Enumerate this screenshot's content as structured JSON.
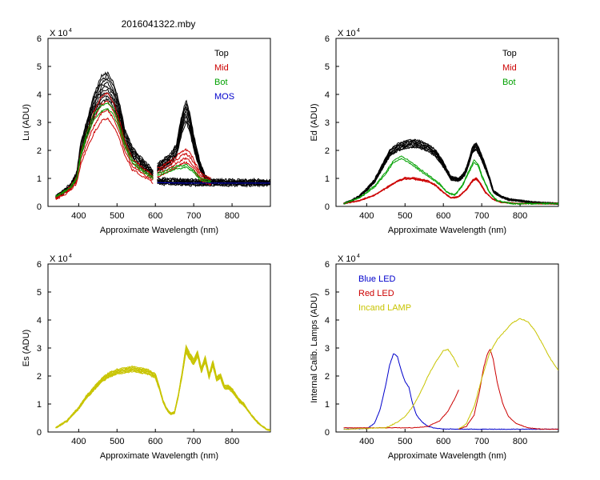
{
  "figure": {
    "title": "2016041322.mby"
  },
  "chart_data": [
    {
      "type": "line",
      "id": "lu",
      "ylabel": "Lu (ADU)",
      "xlabel": "Approximate Wavelength (nm)",
      "y_multiplier": "X 10",
      "y_exponent": "4",
      "xlim": [
        320,
        900
      ],
      "ylim": [
        0,
        6
      ],
      "xticks": [
        400,
        500,
        600,
        700,
        800
      ],
      "yticks": [
        0,
        1,
        2,
        3,
        4,
        5,
        6
      ],
      "legend": [
        "Top",
        "Mid",
        "Bot",
        "MOS"
      ],
      "series": [
        {
          "name": "Top",
          "color": "#000000",
          "copies": 9,
          "spread": 0.22,
          "jitter": 0.1,
          "segments": [
            {
              "x": [
                340,
                360,
                380,
                395,
                405,
                420,
                440,
                460,
                475,
                490,
                505,
                520,
                540,
                560,
                580,
                595
              ],
              "y": [
                0.35,
                0.5,
                0.75,
                1.1,
                2.0,
                2.7,
                3.6,
                4.2,
                4.3,
                4.0,
                3.4,
                2.5,
                1.9,
                1.6,
                1.35,
                1.15
              ]
            },
            {
              "x": [
                605,
                620,
                640,
                655,
                670,
                680,
                690,
                700,
                715,
                730,
                745
              ],
              "y": [
                1.35,
                1.5,
                1.7,
                2.0,
                3.0,
                3.4,
                3.0,
                2.3,
                1.5,
                1.0,
                0.85
              ]
            },
            {
              "x": [
                605,
                640,
                680,
                720,
                760,
                800,
                850,
                900
              ],
              "y": [
                0.9,
                0.88,
                0.86,
                0.85,
                0.85,
                0.85,
                0.85,
                0.85
              ]
            }
          ]
        },
        {
          "name": "Mid",
          "color": "#cc0000",
          "copies": 4,
          "spread": 0.25,
          "jitter": 0.08,
          "segments": [
            {
              "x": [
                340,
                360,
                380,
                395,
                405,
                420,
                440,
                460,
                475,
                490,
                505,
                520,
                540,
                560,
                580,
                595
              ],
              "y": [
                0.3,
                0.45,
                0.65,
                0.95,
                1.7,
                2.3,
                3.0,
                3.5,
                3.6,
                3.3,
                2.8,
                2.1,
                1.5,
                1.3,
                1.1,
                0.95
              ]
            },
            {
              "x": [
                605,
                620,
                640,
                655,
                670,
                680,
                690,
                700,
                715,
                730,
                745
              ],
              "y": [
                1.2,
                1.3,
                1.45,
                1.6,
                1.75,
                1.8,
                1.7,
                1.5,
                1.1,
                0.95,
                0.9
              ]
            }
          ]
        },
        {
          "name": "Bot",
          "color": "#00a000",
          "copies": 2,
          "spread": 0.06,
          "jitter": 0.05,
          "segments": [
            {
              "x": [
                340,
                360,
                380,
                395,
                405,
                420,
                440,
                460,
                475,
                490,
                505,
                520,
                540,
                560,
                580,
                595
              ],
              "y": [
                0.35,
                0.5,
                0.7,
                1.0,
                1.8,
                2.5,
                3.2,
                3.5,
                3.6,
                3.4,
                2.9,
                2.2,
                1.6,
                1.35,
                1.15,
                1.0
              ]
            },
            {
              "x": [
                605,
                620,
                640,
                655,
                670,
                680,
                690,
                700,
                715,
                730,
                745
              ],
              "y": [
                1.15,
                1.2,
                1.3,
                1.4,
                1.4,
                1.45,
                1.35,
                1.25,
                1.0,
                0.92,
                0.88
              ]
            }
          ]
        },
        {
          "name": "MOS",
          "color": "#0000cc",
          "copies": 1,
          "spread": 0,
          "jitter": 0,
          "segments": [
            {
              "x": [
                605,
                640,
                680,
                720,
                760,
                800,
                850,
                900
              ],
              "y": [
                0.85,
                0.84,
                0.83,
                0.83,
                0.83,
                0.83,
                0.83,
                0.83
              ]
            }
          ]
        }
      ]
    },
    {
      "type": "line",
      "id": "ed",
      "ylabel": "Ed  (ADU)",
      "xlabel": "Approximate Wavelength (nm)",
      "y_multiplier": "X 10",
      "y_exponent": "4",
      "xlim": [
        320,
        900
      ],
      "ylim": [
        0,
        6
      ],
      "xticks": [
        400,
        500,
        600,
        700,
        800
      ],
      "yticks": [
        0,
        1,
        2,
        3,
        4,
        5,
        6
      ],
      "legend": [
        "Top",
        "Mid",
        "Bot"
      ],
      "series": [
        {
          "name": "Top",
          "color": "#000000",
          "copies": 9,
          "spread": 0.12,
          "jitter": 0.06,
          "segments": [
            {
              "x": [
                340,
                360,
                380,
                400,
                420,
                440,
                460,
                480,
                500,
                520,
                540,
                560,
                580,
                600,
                620,
                640,
                655,
                665,
                675,
                685,
                695,
                710,
                720,
                730,
                750,
                770,
                800,
                830,
                860,
                900
              ],
              "y": [
                0.1,
                0.2,
                0.35,
                0.6,
                0.9,
                1.4,
                1.9,
                2.1,
                2.2,
                2.25,
                2.2,
                2.1,
                1.9,
                1.5,
                1.0,
                0.95,
                1.15,
                1.5,
                2.0,
                2.15,
                1.9,
                1.4,
                1.0,
                0.55,
                0.35,
                0.25,
                0.2,
                0.15,
                0.12,
                0.1
              ]
            }
          ]
        },
        {
          "name": "Mid",
          "color": "#cc0000",
          "copies": 4,
          "spread": 0.05,
          "jitter": 0.04,
          "segments": [
            {
              "x": [
                340,
                380,
                420,
                450,
                480,
                500,
                520,
                540,
                560,
                580,
                600,
                620,
                640,
                660,
                675,
                685,
                695,
                710,
                730,
                750,
                800,
                900
              ],
              "y": [
                0.1,
                0.2,
                0.4,
                0.65,
                0.9,
                1.0,
                1.0,
                0.95,
                0.9,
                0.75,
                0.5,
                0.3,
                0.35,
                0.6,
                0.9,
                1.0,
                0.85,
                0.5,
                0.25,
                0.15,
                0.1,
                0.1
              ]
            }
          ]
        },
        {
          "name": "Bot",
          "color": "#00a000",
          "copies": 2,
          "spread": 0.05,
          "jitter": 0.05,
          "segments": [
            {
              "x": [
                340,
                380,
                420,
                450,
                470,
                490,
                510,
                530,
                550,
                570,
                590,
                610,
                630,
                650,
                665,
                680,
                690,
                700,
                720,
                740,
                780,
                900
              ],
              "y": [
                0.1,
                0.3,
                0.7,
                1.2,
                1.6,
                1.75,
                1.6,
                1.4,
                1.2,
                1.0,
                0.8,
                0.5,
                0.4,
                0.75,
                1.2,
                1.6,
                1.5,
                1.1,
                0.5,
                0.2,
                0.1,
                0.1
              ]
            }
          ]
        }
      ]
    },
    {
      "type": "line",
      "id": "es",
      "ylabel": "Es  (ADU)",
      "xlabel": "Approximate Wavelength (nm)",
      "y_multiplier": "X 10",
      "y_exponent": "4",
      "xlim": [
        320,
        900
      ],
      "ylim": [
        0,
        6
      ],
      "xticks": [
        400,
        500,
        600,
        700,
        800
      ],
      "yticks": [
        0,
        1,
        2,
        3,
        4,
        5,
        6
      ],
      "legend": [],
      "series": [
        {
          "name": "Es",
          "color": "#c8c400",
          "copies": 8,
          "spread": 0.08,
          "jitter": 0.05,
          "segments": [
            {
              "x": [
                340,
                370,
                400,
                420,
                440,
                460,
                480,
                500,
                520,
                540,
                560,
                580,
                600,
                610,
                620,
                630,
                640,
                650,
                660,
                670,
                680,
                690,
                700,
                710,
                720,
                730,
                740,
                750,
                760,
                770,
                780,
                790,
                800,
                810,
                820,
                830,
                840,
                850,
                860,
                870,
                880,
                890,
                900
              ],
              "y": [
                0.15,
                0.4,
                0.85,
                1.25,
                1.55,
                1.85,
                2.05,
                2.15,
                2.2,
                2.25,
                2.2,
                2.15,
                2.0,
                1.6,
                1.1,
                0.8,
                0.65,
                0.7,
                1.3,
                2.1,
                2.95,
                2.7,
                2.5,
                2.8,
                2.2,
                2.6,
                2.0,
                2.45,
                1.9,
                2.0,
                1.6,
                1.6,
                1.5,
                1.3,
                1.1,
                1.0,
                0.8,
                0.6,
                0.45,
                0.3,
                0.2,
                0.1,
                0.05
              ]
            }
          ]
        }
      ]
    },
    {
      "type": "line",
      "id": "cal",
      "ylabel": "Internal Calib. Lamps (ADU)",
      "xlabel": "Approximate Wavelength (nm)",
      "y_multiplier": "X 10",
      "y_exponent": "4",
      "xlim": [
        320,
        900
      ],
      "ylim": [
        0,
        6
      ],
      "xticks": [
        400,
        500,
        600,
        700,
        800
      ],
      "yticks": [
        0,
        1,
        2,
        3,
        4,
        5,
        6
      ],
      "legend": [
        "Blue LED",
        "Red LED",
        "Incand LAMP"
      ],
      "series": [
        {
          "name": "Blue LED",
          "color": "#0000cc",
          "copies": 1,
          "spread": 0,
          "jitter": 0.02,
          "segments": [
            {
              "x": [
                340,
                400,
                420,
                435,
                450,
                460,
                470,
                480,
                490,
                500,
                510,
                520,
                530,
                545,
                560,
                580,
                600,
                650,
                700,
                750,
                800,
                850,
                900
              ],
              "y": [
                0.1,
                0.12,
                0.3,
                0.8,
                1.7,
                2.4,
                2.8,
                2.7,
                2.2,
                1.8,
                1.6,
                1.0,
                0.6,
                0.35,
                0.2,
                0.13,
                0.11,
                0.1,
                0.1,
                0.1,
                0.1,
                0.1,
                0.1
              ]
            }
          ]
        },
        {
          "name": "Red LED",
          "color": "#cc0000",
          "copies": 1,
          "spread": 0,
          "jitter": 0.02,
          "segments": [
            {
              "x": [
                340,
                450,
                520,
                560,
                590,
                610,
                630,
                640
              ],
              "y": [
                0.15,
                0.15,
                0.15,
                0.2,
                0.4,
                0.7,
                1.2,
                1.5
              ]
            },
            {
              "x": [
                640,
                660,
                680,
                695,
                705,
                715,
                722,
                730,
                740,
                755,
                770,
                790,
                820,
                860,
                900
              ],
              "y": [
                0.1,
                0.2,
                0.6,
                1.5,
                2.3,
                2.8,
                2.95,
                2.6,
                1.8,
                1.0,
                0.55,
                0.3,
                0.15,
                0.1,
                0.1
              ]
            }
          ]
        },
        {
          "name": "Incand LAMP",
          "color": "#c8c400",
          "copies": 1,
          "spread": 0,
          "jitter": 0.03,
          "segments": [
            {
              "x": [
                340,
                450,
                480,
                500,
                520,
                540,
                560,
                580,
                600,
                612,
                625,
                640
              ],
              "y": [
                0.1,
                0.15,
                0.35,
                0.55,
                0.9,
                1.4,
                2.0,
                2.5,
                2.9,
                2.95,
                2.7,
                2.3
              ]
            },
            {
              "x": [
                640,
                660,
                680,
                700,
                720,
                740,
                760,
                780,
                800,
                820,
                840,
                860,
                880,
                900
              ],
              "y": [
                0.1,
                0.3,
                0.9,
                1.9,
                2.8,
                3.3,
                3.6,
                3.9,
                4.05,
                3.95,
                3.6,
                3.1,
                2.6,
                2.2
              ]
            }
          ]
        }
      ]
    }
  ]
}
